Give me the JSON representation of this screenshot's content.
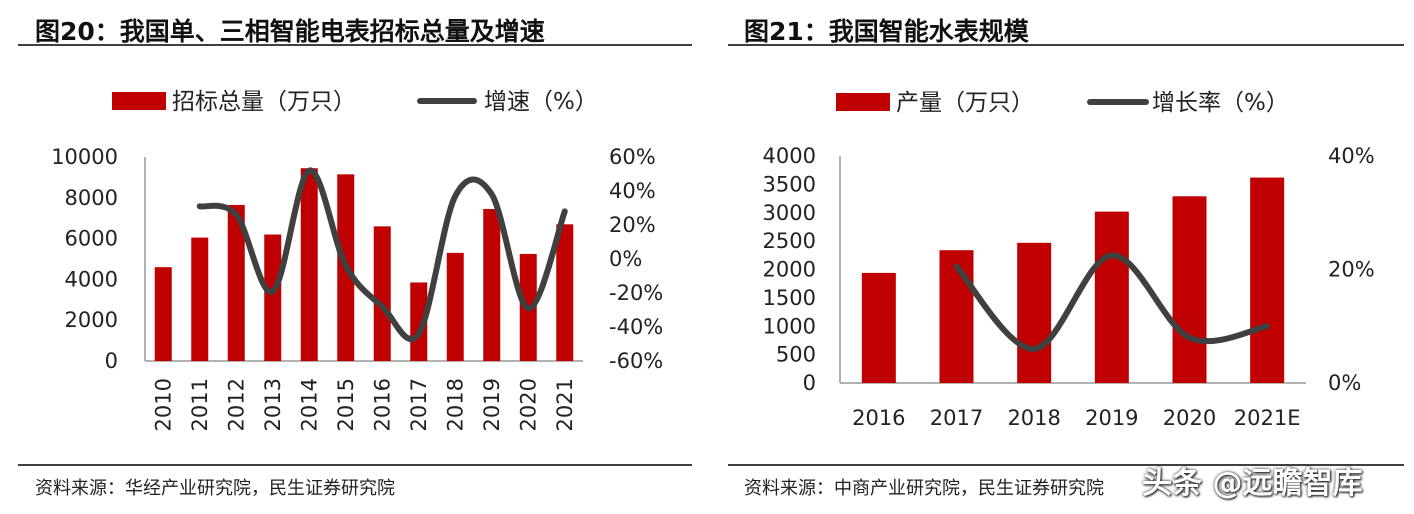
{
  "panels": {
    "left": {
      "title": "图20：我国单、三相智能电表招标总量及增速",
      "source": "资料来源：华经产业研究院，民生证券研究院"
    },
    "right": {
      "title": "图21：我国智能水表规模",
      "source": "资料来源：中商产业研究院，民生证券研究院"
    }
  },
  "watermark": "头条 @远瞻智库",
  "colors": {
    "bar": "#C00000",
    "line": "#404040",
    "axis": "#999999",
    "rule": "#404040"
  },
  "chart_data": [
    {
      "type": "bar",
      "title": "图20：我国单、三相智能电表招标总量及增速",
      "categories": [
        "2010",
        "2011",
        "2012",
        "2013",
        "2014",
        "2015",
        "2016",
        "2017",
        "2018",
        "2019",
        "2020",
        "2021"
      ],
      "series": [
        {
          "name": "招标总量（万只）",
          "type": "bar",
          "axis": "left",
          "values": [
            4600,
            6050,
            7650,
            6200,
            9450,
            9150,
            6600,
            3850,
            5300,
            7450,
            5250,
            6700
          ]
        },
        {
          "name": "增速（%）",
          "type": "line",
          "axis": "right",
          "smooth": true,
          "values": [
            null,
            31,
            26,
            -19,
            52,
            -4,
            -28,
            -44,
            37,
            38,
            -29,
            28
          ]
        }
      ],
      "y_left": {
        "min": 0,
        "max": 10000,
        "ticks": [
          "0",
          "2000",
          "4000",
          "6000",
          "8000",
          "10000"
        ]
      },
      "y_right": {
        "min": -60,
        "max": 60,
        "ticks": [
          "-60%",
          "-40%",
          "-20%",
          "0%",
          "20%",
          "40%",
          "60%"
        ]
      },
      "legend": "top",
      "grid": false
    },
    {
      "type": "bar",
      "title": "图21：我国智能水表规模",
      "categories": [
        "2016",
        "2017",
        "2018",
        "2019",
        "2020",
        "2021E"
      ],
      "series": [
        {
          "name": "产量（万只）",
          "type": "bar",
          "axis": "left",
          "values": [
            1940,
            2340,
            2470,
            3020,
            3290,
            3620
          ]
        },
        {
          "name": "增长率（%）",
          "type": "line",
          "axis": "right",
          "smooth": true,
          "values": [
            null,
            20.5,
            6,
            22.5,
            8,
            10
          ]
        }
      ],
      "y_left": {
        "min": 0,
        "max": 4000,
        "ticks": [
          "0",
          "500",
          "1000",
          "1500",
          "2000",
          "2500",
          "3000",
          "3500",
          "4000"
        ]
      },
      "y_right": {
        "min": 0,
        "max": 40,
        "ticks": [
          "0%",
          "20%",
          "40%"
        ]
      },
      "legend": "top",
      "grid": false
    }
  ]
}
